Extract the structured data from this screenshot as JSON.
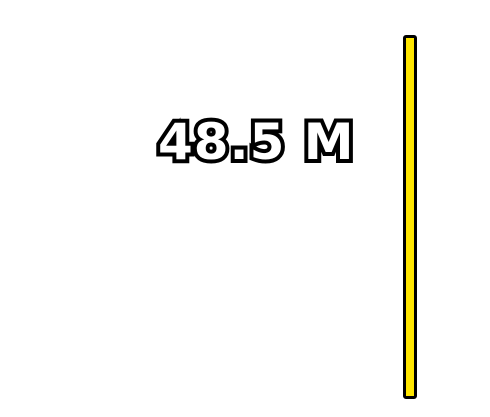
{
  "hud": {
    "counter_text": "48.5 M"
  },
  "colors": {
    "background": "#ffffff",
    "counter_fill": "#ffffff",
    "counter_outline": "#000000",
    "gauge_fill": "#ffe600",
    "gauge_outline": "#000000"
  }
}
